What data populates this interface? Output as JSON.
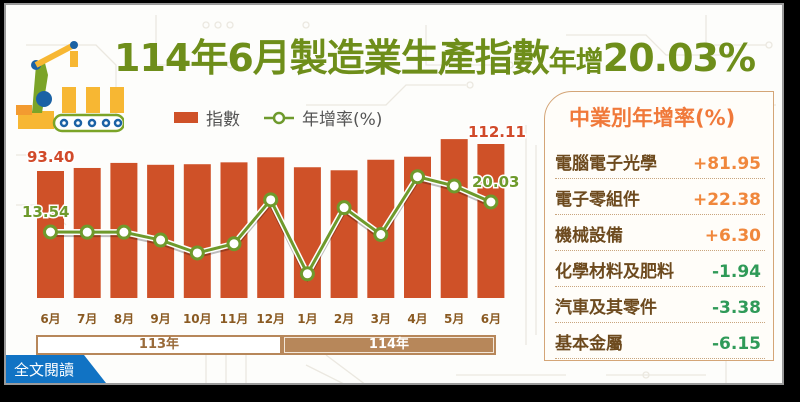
{
  "title": {
    "part1": "114年6月製造業生產指數",
    "part2": "年增",
    "part3": "20.03%"
  },
  "legend": {
    "bar_label": "指數",
    "line_label": "年增率(%)"
  },
  "annotations": {
    "first_index": "93.40",
    "first_rate": "13.54",
    "last_index": "112.11",
    "last_rate": "20.03"
  },
  "years": {
    "y113": "113年",
    "y114": "114年"
  },
  "read_more": "全文閱讀",
  "panel": {
    "title": "中業別年增率(%)",
    "rows": [
      {
        "name": "電腦電子光學",
        "value": "+81.95",
        "sign": "pos"
      },
      {
        "name": "電子零組件",
        "value": "+22.38",
        "sign": "pos"
      },
      {
        "name": "機械設備",
        "value": "+6.30",
        "sign": "pos"
      },
      {
        "name": "化學材料及肥料",
        "value": "-1.94",
        "sign": "neg"
      },
      {
        "name": "汽車及其零件",
        "value": "-3.38",
        "sign": "neg"
      },
      {
        "name": "基本金屬",
        "value": "-6.15",
        "sign": "neg"
      }
    ]
  },
  "colors": {
    "bar": "#cf5128",
    "line": "#6e9a2c",
    "title": "#6e8e1a",
    "month_label": "#8a5a22",
    "panel_title": "#f0793a",
    "positive": "#f0873c",
    "negative": "#2f9a58",
    "year_box": "#b7875a",
    "read_more_bg": "#1173c4"
  },
  "chart_data": {
    "type": "bar",
    "title": "114年6月製造業生產指數年增20.03%",
    "categories": [
      "6月",
      "7月",
      "8月",
      "9月",
      "10月",
      "11月",
      "12月",
      "1月",
      "2月",
      "3月",
      "4月",
      "5月",
      "6月"
    ],
    "year_groups": [
      {
        "label": "113年",
        "months": [
          "6月",
          "7月",
          "8月",
          "9月",
          "10月",
          "11月",
          "12月"
        ]
      },
      {
        "label": "114年",
        "months": [
          "1月",
          "2月",
          "3月",
          "4月",
          "5月",
          "6月"
        ]
      }
    ],
    "series": [
      {
        "name": "指數",
        "type": "bar",
        "values": [
          93.4,
          95.5,
          99.0,
          97.7,
          98.1,
          99.4,
          102.9,
          96.0,
          93.9,
          101.2,
          103.3,
          115.5,
          112.11
        ]
      },
      {
        "name": "年增率(%)",
        "type": "line",
        "values": [
          13.54,
          13.5,
          13.5,
          11.8,
          9.0,
          11.0,
          20.5,
          4.5,
          18.8,
          13.0,
          25.5,
          23.5,
          20.03
        ]
      }
    ],
    "labeled_points": {
      "index_first": 93.4,
      "index_last": 112.11,
      "rate_first": 13.54,
      "rate_last": 20.03
    },
    "xlabel": "",
    "ylabel": "",
    "grid": false,
    "legend_position": "top"
  }
}
